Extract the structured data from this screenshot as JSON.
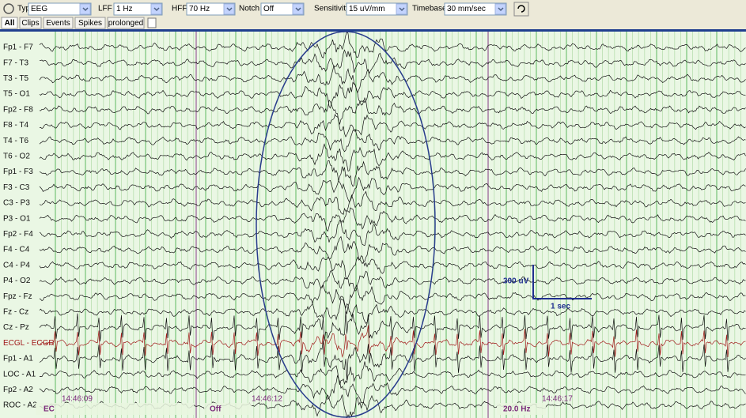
{
  "toolbar": {
    "controls": [
      {
        "label": "Type",
        "value": "EEG"
      },
      {
        "label": "LFF",
        "value": "1 Hz"
      },
      {
        "label": "HFF",
        "value": "70 Hz"
      },
      {
        "label": "Notch",
        "value": "Off"
      },
      {
        "label": "Sensitivity",
        "value": "15 uV/mm"
      },
      {
        "label": "Timebase",
        "value": "30 mm/sec"
      }
    ]
  },
  "tabs": [
    "All",
    "Clips",
    "Events",
    "Spikes",
    "prolonged"
  ],
  "channels": [
    "Fp1 - F7",
    "F7 - T3",
    "T3 - T5",
    "T5 - O1",
    "Fp2 - F8",
    "F8 - T4",
    "T4 - T6",
    "T6 - O2",
    "Fp1 - F3",
    "F3 - C3",
    "C3 - P3",
    "P3 - O1",
    "Fp2 - F4",
    "F4 - C4",
    "C4 - P4",
    "P4 - O2",
    "Fpz - Fz",
    "Fz - Cz",
    "Cz - Pz",
    "ECGL - ECGR",
    "Fp1 - A1",
    "LOC - A1",
    "Fp2 - A2",
    "ROC - A2"
  ],
  "scale": {
    "amplitude": "300 uV",
    "time": "1 sec"
  },
  "timeline": {
    "times": [
      "14:46:09",
      "14:46:12",
      "14:46:17"
    ],
    "events": [
      "EC",
      "Off",
      "20.0 Hz"
    ]
  }
}
